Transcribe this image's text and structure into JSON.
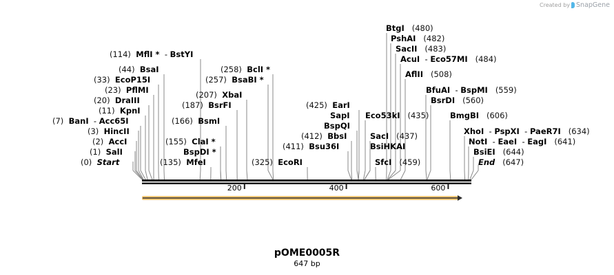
{
  "credit": {
    "prefix": "Created by",
    "brand": "SnapGene"
  },
  "plasmid": {
    "name": "pOME0005R",
    "length_label": "647 bp",
    "length": 647
  },
  "colors": {
    "backbone": "#1a1a1a",
    "feature_fill": "#f7c978",
    "feature_line": "#2b2b2b",
    "cut_line": "#888888"
  },
  "ruler": {
    "ticks": [
      {
        "value": 200,
        "label": "200"
      },
      {
        "value": 400,
        "label": "400"
      },
      {
        "value": 600,
        "label": "600"
      }
    ]
  },
  "feature": {
    "name": "orf-arrow",
    "start": 0,
    "end": 624,
    "direction": "forward"
  },
  "left_labels": [
    {
      "pos": "(114)",
      "parts": [
        "MflI *",
        "BstYI"
      ],
      "site": 114
    },
    {
      "pos": "(44)",
      "parts": [
        "BsaI"
      ],
      "site": 44
    },
    {
      "pos": "(33)",
      "parts": [
        "EcoP15I"
      ],
      "site": 33
    },
    {
      "pos": "(23)",
      "parts": [
        "PflMI"
      ],
      "site": 23
    },
    {
      "pos": "(20)",
      "parts": [
        "DraIII"
      ],
      "site": 20
    },
    {
      "pos": "(11)",
      "parts": [
        "KpnI"
      ],
      "site": 11
    },
    {
      "pos": "(7)",
      "parts": [
        "BanI",
        "Acc65I"
      ],
      "site": 7
    },
    {
      "pos": "(3)",
      "parts": [
        "HincII"
      ],
      "site": 3
    },
    {
      "pos": "(2)",
      "parts": [
        "AccI"
      ],
      "site": 2
    },
    {
      "pos": "(1)",
      "parts": [
        "SalI"
      ],
      "site": 1
    },
    {
      "pos": "(0)",
      "parts": [
        "Start"
      ],
      "site": 0,
      "italic": true
    }
  ],
  "middle_labels": [
    {
      "pos": "(258)",
      "parts": [
        "BclI *"
      ],
      "site": 258
    },
    {
      "pos": "(257)",
      "parts": [
        "BsaBI *"
      ],
      "site": 257
    },
    {
      "pos": "(207)",
      "parts": [
        "XbaI"
      ],
      "site": 207
    },
    {
      "pos": "(187)",
      "parts": [
        "BsrFI"
      ],
      "site": 187
    },
    {
      "pos": "(166)",
      "parts": [
        "BsmI"
      ],
      "site": 166
    },
    {
      "pos": "(155)",
      "parts": [
        "ClaI *"
      ],
      "site": 155
    },
    {
      "pos": "",
      "parts": [
        "BspDI *"
      ],
      "site": 155
    },
    {
      "pos": "(135)",
      "parts": [
        "MfeI"
      ],
      "site": 135
    },
    {
      "pos": "(325)",
      "parts": [
        "EcoRI"
      ],
      "site": 325
    },
    {
      "pos": "(425)",
      "parts": [
        "EarI"
      ],
      "site": 425
    },
    {
      "pos": "",
      "parts": [
        "SapI"
      ],
      "site": 425
    },
    {
      "pos": "",
      "parts": [
        "BspQI"
      ],
      "site": 425
    },
    {
      "pos": "(412)",
      "parts": [
        "BbsI"
      ],
      "site": 412
    },
    {
      "pos": "(411)",
      "parts": [
        "Bsu36I"
      ],
      "site": 411
    }
  ],
  "right_labels": [
    {
      "pos": "(480)",
      "parts": [
        "BtgI"
      ],
      "site": 480
    },
    {
      "pos": "(482)",
      "parts": [
        "PshAI"
      ],
      "site": 482
    },
    {
      "pos": "(483)",
      "parts": [
        "SacII"
      ],
      "site": 483
    },
    {
      "pos": "(484)",
      "parts": [
        "AcuI",
        "Eco57MI"
      ],
      "site": 484
    },
    {
      "pos": "(508)",
      "parts": [
        "AflII"
      ],
      "site": 508
    },
    {
      "pos": "(559)",
      "parts": [
        "BfuAI",
        "BspMI"
      ],
      "site": 559
    },
    {
      "pos": "(560)",
      "parts": [
        "BsrDI"
      ],
      "site": 560
    },
    {
      "pos": "(435)",
      "parts": [
        "Eco53kI"
      ],
      "site": 435
    },
    {
      "pos": "(437)",
      "parts": [
        "SacI"
      ],
      "site": 437
    },
    {
      "pos": "",
      "parts": [
        "BsiHKAI"
      ],
      "site": 437
    },
    {
      "pos": "(459)",
      "parts": [
        "SfcI"
      ],
      "site": 459
    },
    {
      "pos": "(606)",
      "parts": [
        "BmgBI"
      ],
      "site": 606
    },
    {
      "pos": "(634)",
      "parts": [
        "XhoI",
        "PspXI",
        "PaeR7I"
      ],
      "site": 634
    },
    {
      "pos": "(641)",
      "parts": [
        "NotI",
        "EaeI",
        "EagI"
      ],
      "site": 641
    },
    {
      "pos": "(644)",
      "parts": [
        "BsiEI"
      ],
      "site": 644
    },
    {
      "pos": "(647)",
      "parts": [
        "End"
      ],
      "site": 647,
      "italic": true
    }
  ]
}
